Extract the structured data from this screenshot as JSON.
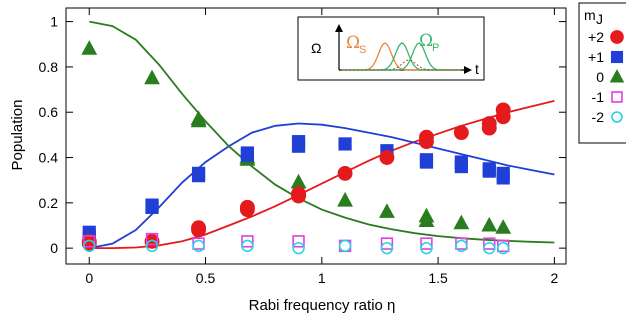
{
  "chart_data": {
    "type": "scatter",
    "xlabel": "Rabi frequency ratio η",
    "ylabel": "Population",
    "xlim": [
      -0.1,
      2.05
    ],
    "ylim": [
      -0.07,
      1.06
    ],
    "xticks": [
      "0",
      "0.5",
      "1",
      "1.5",
      "2"
    ],
    "yticks": [
      "0",
      "0.2",
      "0.4",
      "0.6",
      "0.8",
      "1"
    ],
    "grid": false,
    "legend": {
      "title": "m",
      "title_sub": "J",
      "placement": "outside-right",
      "entries": [
        {
          "label": "+2",
          "marker": "filled-circle",
          "color": "#e41a1c"
        },
        {
          "label": "+1",
          "marker": "filled-square",
          "color": "#1f3fd6"
        },
        {
          "label": "0",
          "marker": "filled-triangle",
          "color": "#2a7d1f"
        },
        {
          "label": "-1",
          "marker": "open-square",
          "color": "#e23ee2"
        },
        {
          "label": "-2",
          "marker": "open-circle",
          "color": "#2ad1e6"
        }
      ]
    },
    "inset": {
      "omega_label": "Ω",
      "t_label": "t",
      "omega_s_main": "Ω",
      "omega_s_sub": "S",
      "omega_p_main": "Ω",
      "omega_p_sub": "P",
      "omega_s_color": "#e8873c",
      "omega_p_color": "#3bb56c"
    },
    "series": [
      {
        "name": "+2",
        "marker": "filled-circle",
        "color": "#e41a1c",
        "points": [
          [
            0,
            0.02
          ],
          [
            0,
            0.03
          ],
          [
            0.27,
            0.03
          ],
          [
            0.47,
            0.08
          ],
          [
            0.47,
            0.09
          ],
          [
            0.68,
            0.17
          ],
          [
            0.68,
            0.18
          ],
          [
            0.9,
            0.24
          ],
          [
            0.9,
            0.23
          ],
          [
            1.1,
            0.33
          ],
          [
            1.28,
            0.4
          ],
          [
            1.45,
            0.47
          ],
          [
            1.45,
            0.49
          ],
          [
            1.6,
            0.51
          ],
          [
            1.72,
            0.53
          ],
          [
            1.72,
            0.55
          ],
          [
            1.78,
            0.58
          ],
          [
            1.78,
            0.61
          ]
        ]
      },
      {
        "name": "+1",
        "marker": "filled-square",
        "color": "#1f3fd6",
        "points": [
          [
            0,
            0.05
          ],
          [
            0,
            0.07
          ],
          [
            0.27,
            0.18
          ],
          [
            0.27,
            0.19
          ],
          [
            0.47,
            0.32
          ],
          [
            0.47,
            0.33
          ],
          [
            0.68,
            0.42
          ],
          [
            0.68,
            0.41
          ],
          [
            0.9,
            0.45
          ],
          [
            0.9,
            0.47
          ],
          [
            1.1,
            0.46
          ],
          [
            1.28,
            0.43
          ],
          [
            1.45,
            0.38
          ],
          [
            1.45,
            0.39
          ],
          [
            1.6,
            0.36
          ],
          [
            1.6,
            0.38
          ],
          [
            1.72,
            0.34
          ],
          [
            1.72,
            0.35
          ],
          [
            1.78,
            0.31
          ],
          [
            1.78,
            0.33
          ]
        ]
      },
      {
        "name": "0",
        "marker": "filled-triangle",
        "color": "#2a7d1f",
        "points": [
          [
            0,
            0.88
          ],
          [
            0.27,
            0.75
          ],
          [
            0.47,
            0.57
          ],
          [
            0.47,
            0.56
          ],
          [
            0.68,
            0.4
          ],
          [
            0.68,
            0.39
          ],
          [
            0.9,
            0.29
          ],
          [
            0.9,
            0.26
          ],
          [
            1.1,
            0.21
          ],
          [
            1.28,
            0.16
          ],
          [
            1.45,
            0.14
          ],
          [
            1.45,
            0.12
          ],
          [
            1.6,
            0.11
          ],
          [
            1.72,
            0.1
          ],
          [
            1.78,
            0.09
          ]
        ]
      },
      {
        "name": "-1",
        "marker": "open-square",
        "color": "#e23ee2",
        "points": [
          [
            0,
            0.03
          ],
          [
            0.27,
            0.04
          ],
          [
            0.47,
            0.02
          ],
          [
            0.68,
            0.03
          ],
          [
            0.9,
            0.03
          ],
          [
            1.1,
            0.01
          ],
          [
            1.28,
            0.02
          ],
          [
            1.45,
            0.02
          ],
          [
            1.6,
            0.02
          ],
          [
            1.72,
            0.02
          ],
          [
            1.78,
            0.01
          ]
        ]
      },
      {
        "name": "-2",
        "marker": "open-circle",
        "color": "#2ad1e6",
        "points": [
          [
            0,
            0.01
          ],
          [
            0.27,
            0.01
          ],
          [
            0.47,
            0.01
          ],
          [
            0.68,
            0.01
          ],
          [
            0.9,
            0.0
          ],
          [
            1.1,
            0.01
          ],
          [
            1.28,
            0.0
          ],
          [
            1.45,
            0.0
          ],
          [
            1.6,
            0.01
          ],
          [
            1.72,
            0.0
          ],
          [
            1.78,
            0.0
          ]
        ]
      }
    ],
    "curves": [
      {
        "name": "+2",
        "color": "#e41a1c",
        "points": [
          [
            0,
            0.0
          ],
          [
            0.1,
            0.0002
          ],
          [
            0.2,
            0.003
          ],
          [
            0.3,
            0.012
          ],
          [
            0.4,
            0.03
          ],
          [
            0.5,
            0.06
          ],
          [
            0.6,
            0.1
          ],
          [
            0.7,
            0.14
          ],
          [
            0.8,
            0.185
          ],
          [
            0.9,
            0.235
          ],
          [
            1.0,
            0.285
          ],
          [
            1.1,
            0.335
          ],
          [
            1.2,
            0.385
          ],
          [
            1.3,
            0.43
          ],
          [
            1.4,
            0.47
          ],
          [
            1.5,
            0.505
          ],
          [
            1.6,
            0.54
          ],
          [
            1.7,
            0.57
          ],
          [
            1.8,
            0.6
          ],
          [
            1.9,
            0.625
          ],
          [
            2.0,
            0.65
          ]
        ]
      },
      {
        "name": "+1",
        "color": "#1f3fd6",
        "points": [
          [
            0,
            0.0
          ],
          [
            0.1,
            0.02
          ],
          [
            0.2,
            0.08
          ],
          [
            0.3,
            0.18
          ],
          [
            0.4,
            0.29
          ],
          [
            0.5,
            0.38
          ],
          [
            0.6,
            0.45
          ],
          [
            0.7,
            0.51
          ],
          [
            0.8,
            0.54
          ],
          [
            0.9,
            0.55
          ],
          [
            1.0,
            0.545
          ],
          [
            1.1,
            0.53
          ],
          [
            1.2,
            0.51
          ],
          [
            1.3,
            0.49
          ],
          [
            1.4,
            0.465
          ],
          [
            1.5,
            0.44
          ],
          [
            1.6,
            0.415
          ],
          [
            1.7,
            0.39
          ],
          [
            1.8,
            0.365
          ],
          [
            1.9,
            0.345
          ],
          [
            2.0,
            0.325
          ]
        ]
      },
      {
        "name": "0",
        "color": "#2a7d1f",
        "points": [
          [
            0,
            1.0
          ],
          [
            0.1,
            0.98
          ],
          [
            0.2,
            0.92
          ],
          [
            0.3,
            0.81
          ],
          [
            0.4,
            0.68
          ],
          [
            0.5,
            0.56
          ],
          [
            0.6,
            0.45
          ],
          [
            0.7,
            0.36
          ],
          [
            0.8,
            0.28
          ],
          [
            0.9,
            0.22
          ],
          [
            1.0,
            0.17
          ],
          [
            1.1,
            0.135
          ],
          [
            1.2,
            0.105
          ],
          [
            1.3,
            0.083
          ],
          [
            1.4,
            0.066
          ],
          [
            1.5,
            0.053
          ],
          [
            1.6,
            0.044
          ],
          [
            1.7,
            0.037
          ],
          [
            1.8,
            0.032
          ],
          [
            1.9,
            0.028
          ],
          [
            2.0,
            0.025
          ]
        ]
      }
    ]
  }
}
